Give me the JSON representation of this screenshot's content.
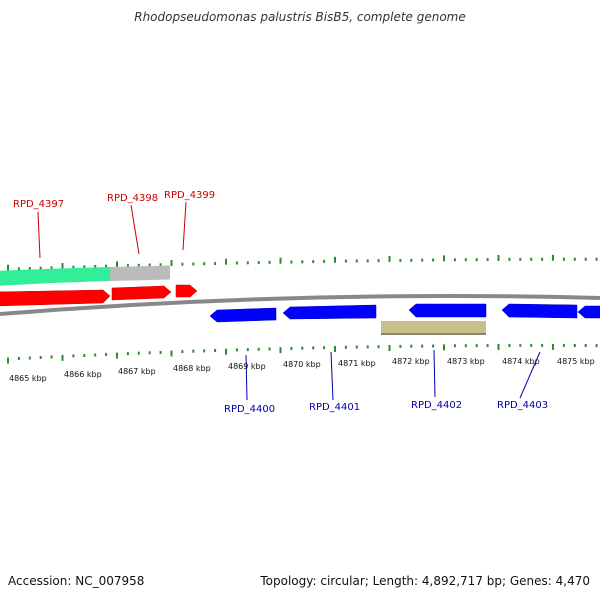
{
  "title": "Rhodopseudomonas palustris BisB5, complete genome",
  "footer": {
    "accession": "Accession: NC_007958",
    "summary": "Topology: circular; Length: 4,892,717 bp; Genes: 4,470"
  },
  "colors": {
    "backbone": "#888888",
    "tick": "#2e8b2e",
    "forward_gene": "#ff0000",
    "reverse_gene": "#0000ff",
    "cds_teal": "#33ee99",
    "gray_feature": "#bbbbbb",
    "khaki_feature": "#c8c08c",
    "forward_label": "#cc0000",
    "reverse_label": "#0000aa",
    "scale_label": "#111111"
  },
  "scale": {
    "unit": "kbp",
    "labels": [
      "4865 kbp",
      "4866 kbp",
      "4867 kbp",
      "4868 kbp",
      "4869 kbp",
      "4870 kbp",
      "4871 kbp",
      "4872 kbp",
      "4873 kbp",
      "4874 kbp",
      "4875 kbp"
    ]
  },
  "genes": [
    {
      "id": "RPD_4397",
      "strand": "forward"
    },
    {
      "id": "RPD_4398",
      "strand": "forward"
    },
    {
      "id": "RPD_4399",
      "strand": "forward"
    },
    {
      "id": "RPD_4400",
      "strand": "reverse"
    },
    {
      "id": "RPD_4401",
      "strand": "reverse"
    },
    {
      "id": "RPD_4402",
      "strand": "reverse"
    },
    {
      "id": "RPD_4403",
      "strand": "reverse"
    }
  ]
}
